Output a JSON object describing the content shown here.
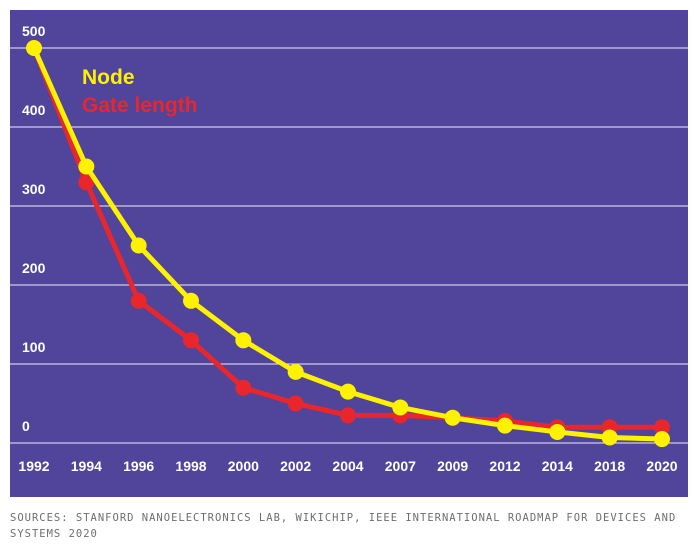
{
  "chart_data": {
    "type": "line",
    "title": "",
    "xlabel": "",
    "ylabel": "",
    "categories": [
      "1992",
      "1994",
      "1996",
      "1998",
      "2000",
      "2002",
      "2004",
      "2007",
      "2009",
      "2012",
      "2014",
      "2018",
      "2020"
    ],
    "yticks": [
      "0",
      "100",
      "200",
      "300",
      "400",
      "500"
    ],
    "ylim": [
      0,
      500
    ],
    "series": [
      {
        "name": "Node",
        "color": "#fff200",
        "values": [
          500,
          350,
          250,
          180,
          130,
          90,
          65,
          45,
          32,
          22,
          14,
          7,
          5
        ]
      },
      {
        "name": "Gate length",
        "color": "#e8262b",
        "values": [
          500,
          330,
          180,
          130,
          70,
          50,
          35,
          35,
          32,
          28,
          20,
          20,
          20
        ]
      }
    ],
    "grid": true,
    "legend_position": "top-left"
  },
  "caption": "SOURCES: STANFORD NANOELECTRONICS LAB, WIKICHIP, IEEE INTERNATIONAL ROADMAP FOR DEVICES AND SYSTEMS 2020"
}
